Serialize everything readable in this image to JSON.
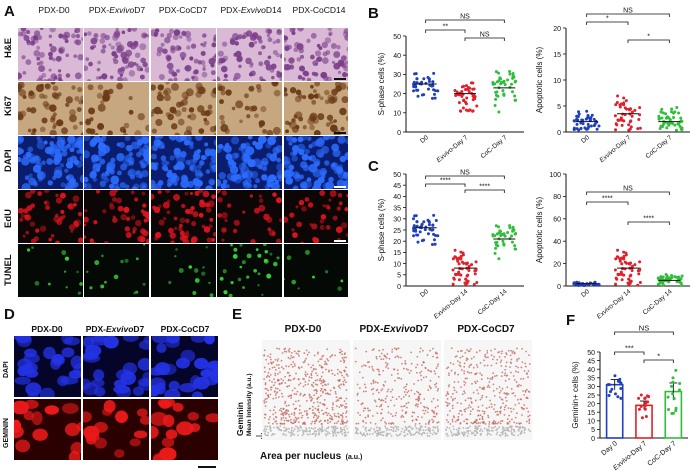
{
  "panels": {
    "A": "A",
    "B": "B",
    "C": "C",
    "D": "D",
    "E": "E",
    "F": "F"
  },
  "panelA": {
    "columns": [
      "PDX-D0",
      "PDX-",
      "Exvivo",
      "D7",
      "PDX-CoCD7",
      "PDX-",
      "Exvivo",
      "D14",
      "PDX-CoCD14"
    ],
    "rows": [
      "H&E",
      "Ki67",
      "DAPI",
      "EdU",
      "TUNEL"
    ]
  },
  "panelD": {
    "columns": [
      "PDX-D0",
      "PDX-",
      "Exvivo",
      "D7",
      "PDX-CoCD7"
    ],
    "rows": [
      "DAPI",
      "GEMININ"
    ]
  },
  "panelE": {
    "titles": [
      "PDX-D0",
      "PDX-",
      "Exvivo",
      "D7",
      "PDX-CoCD7"
    ],
    "ylabel_main": "Geminin",
    "ylabel_sub": "Mean Intensity",
    "ylabel_unit": "(a.u.)",
    "xlabel_main": "Area per nucleus",
    "xlabel_unit": "(a.u.)"
  },
  "colors": {
    "d0": "#1f3fbf",
    "exvivo": "#e0202a",
    "coc": "#2fbf3a"
  },
  "chart_data": [
    {
      "id": "B-left",
      "type": "scatter",
      "ylabel": "S-phase cells (%)",
      "ylim": [
        0,
        50
      ],
      "yticks": [
        0,
        10,
        20,
        30,
        40,
        50
      ],
      "categories": [
        "D0",
        "Exvivo-Day 7",
        "CoC-Day 7"
      ],
      "series": [
        {
          "category": "D0",
          "mean": 25,
          "spread": 6,
          "n": 40
        },
        {
          "category": "Exvivo-Day 7",
          "mean": 20,
          "spread": 7,
          "n": 45
        },
        {
          "category": "CoC-Day 7",
          "mean": 23,
          "spread": 10,
          "n": 45
        }
      ],
      "brackets": [
        {
          "from": 0,
          "to": 2,
          "label": "NS"
        },
        {
          "from": 0,
          "to": 1,
          "label": "**"
        },
        {
          "from": 1,
          "to": 2,
          "label": "NS"
        }
      ]
    },
    {
      "id": "B-right",
      "type": "scatter",
      "ylabel": "Apoptotic cells (%)",
      "ylim": [
        0,
        20
      ],
      "yticks": [
        0,
        5,
        10,
        15,
        20
      ],
      "categories": [
        "D0",
        "Exvivo-Day 7",
        "CoC-Day 7"
      ],
      "series": [
        {
          "category": "D0",
          "mean": 2,
          "spread": 2.5,
          "n": 45
        },
        {
          "category": "Exvivo-Day 7",
          "mean": 3.5,
          "spread": 3,
          "n": 45
        },
        {
          "category": "CoC-Day 7",
          "mean": 2,
          "spread": 2.2,
          "n": 45
        }
      ],
      "brackets": [
        {
          "from": 0,
          "to": 2,
          "label": "NS"
        },
        {
          "from": 0,
          "to": 1,
          "label": "*"
        },
        {
          "from": 1,
          "to": 2,
          "label": "*"
        }
      ]
    },
    {
      "id": "C-left",
      "type": "scatter",
      "ylabel": "S-phase cells (%)",
      "ylim": [
        0,
        50
      ],
      "yticks": [
        0,
        5,
        10,
        15,
        20,
        25,
        30,
        35,
        40,
        45,
        50
      ],
      "categories": [
        "D0",
        "Exvivo-Day 14",
        "CoC-Day 14"
      ],
      "series": [
        {
          "category": "D0",
          "mean": 26,
          "spread": 6,
          "n": 45
        },
        {
          "category": "Exvivo-Day 14",
          "mean": 8,
          "spread": 7,
          "n": 55
        },
        {
          "category": "CoC-Day 14",
          "mean": 21,
          "spread": 7,
          "n": 45
        }
      ],
      "brackets": [
        {
          "from": 0,
          "to": 2,
          "label": "NS"
        },
        {
          "from": 0,
          "to": 1,
          "label": "****"
        },
        {
          "from": 1,
          "to": 2,
          "label": "****"
        }
      ]
    },
    {
      "id": "C-right",
      "type": "scatter",
      "ylabel": "Apoptotic cells (%)",
      "ylim": [
        0,
        100
      ],
      "yticks": [
        0,
        20,
        40,
        60,
        80,
        100
      ],
      "categories": [
        "D0",
        "Exvivo-Day 14",
        "CoC-Day 14"
      ],
      "series": [
        {
          "category": "D0",
          "mean": 2,
          "spread": 1.5,
          "n": 40
        },
        {
          "category": "Exvivo-Day 14",
          "mean": 16,
          "spread": 14,
          "n": 55
        },
        {
          "category": "CoC-Day 14",
          "mean": 5,
          "spread": 4,
          "n": 45
        }
      ],
      "brackets": [
        {
          "from": 0,
          "to": 2,
          "label": "NS"
        },
        {
          "from": 0,
          "to": 1,
          "label": "****"
        },
        {
          "from": 1,
          "to": 2,
          "label": "****"
        }
      ]
    },
    {
      "id": "F",
      "type": "bar",
      "ylabel": "Geminin+ cells (%)",
      "ylim": [
        0,
        50
      ],
      "yticks": [
        0,
        5,
        10,
        15,
        20,
        25,
        30,
        35,
        40,
        45,
        50
      ],
      "categories": [
        "Day 0",
        "Exvivo-Day 7",
        "CoC-Day 7"
      ],
      "values": [
        31,
        19,
        27
      ],
      "errors": [
        3,
        2.5,
        5
      ],
      "brackets": [
        {
          "from": 0,
          "to": 2,
          "label": "NS"
        },
        {
          "from": 0,
          "to": 1,
          "label": "***"
        },
        {
          "from": 1,
          "to": 2,
          "label": "*"
        }
      ]
    }
  ]
}
